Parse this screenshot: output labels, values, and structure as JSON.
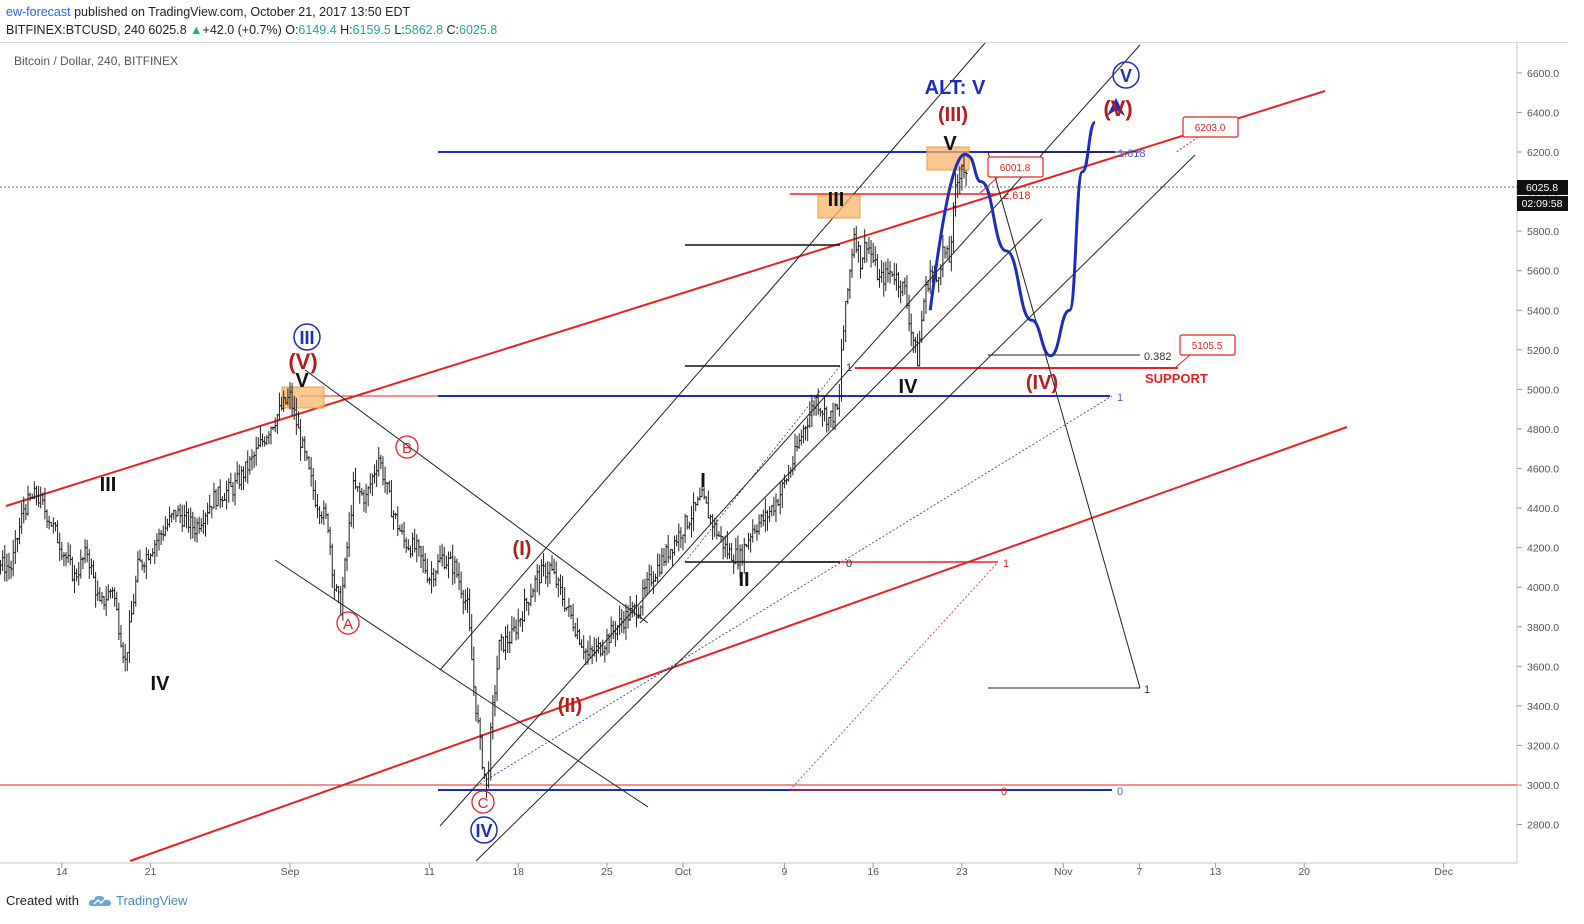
{
  "header": {
    "author": "ew-forecast",
    "published": "published on TradingView.com, October 21, 2017 13:50 EDT",
    "symbol_line": "BITFINEX:BTCUSD, 240",
    "last": "6025.8",
    "change_arrow": "▲",
    "change": "+42.0 (+0.7%)",
    "o_label": "O:",
    "o": "6149.4",
    "h_label": "H:",
    "h": "6159.5",
    "l_label": "L:",
    "l": "5862.8",
    "c_label": "C:",
    "c": "6025.8"
  },
  "footer": {
    "created_with": "Created with",
    "brand": "TradingView"
  },
  "colors": {
    "red": "#e8231f",
    "blue": "#1c2dbd",
    "dark_red": "#b71c1c",
    "bar": "#222222",
    "orange_box": "#f7b46a"
  },
  "chart_data": {
    "type": "ohlc_bar",
    "title": "Bitcoin / Dollar, 240, BITFINEX",
    "ylim": [
      2630,
      6830
    ],
    "y_ticks": [
      "2800.0",
      "3000.0",
      "3200.0",
      "3400.0",
      "3600.0",
      "3800.0",
      "4000.0",
      "4200.0",
      "4400.0",
      "4600.0",
      "4800.0",
      "5000.0",
      "5200.0",
      "5400.0",
      "5600.0",
      "5800.0",
      "6000.0",
      "6200.0",
      "6400.0",
      "6600.0"
    ],
    "y_tick_values": [
      2800,
      3000,
      3200,
      3400,
      3600,
      3800,
      4000,
      4200,
      4400,
      4600,
      4800,
      5000,
      5200,
      5400,
      5600,
      5800,
      6000,
      6200,
      6400,
      6600
    ],
    "x_ticks": [
      "14",
      "21",
      "Sep",
      "11",
      "18",
      "25",
      "Oct",
      "9",
      "16",
      "23",
      "Nov",
      "7",
      "13",
      "20",
      "Dec"
    ],
    "x_tick_days": [
      13.5,
      20.5,
      31.5,
      42.5,
      49.5,
      56.5,
      62.5,
      70.5,
      77.5,
      84.5,
      92.5,
      98.5,
      104.5,
      111.5,
      122.5
    ],
    "x_domain_note": "days from Aug 1 2017",
    "last_price_label": "6025.8",
    "last_price": 6025.8,
    "countdown_label": "02:09:58",
    "price_path": [
      [
        0,
        3300
      ],
      [
        1.5,
        3420
      ],
      [
        3,
        3700
      ],
      [
        4.5,
        4100
      ],
      [
        6,
        4280
      ],
      [
        7.5,
        4350
      ],
      [
        8.5,
        4120
      ],
      [
        9.5,
        4100
      ],
      [
        10.5,
        4400
      ],
      [
        11.5,
        4470
      ],
      [
        12.5,
        4350
      ],
      [
        13.5,
        4200
      ],
      [
        14.5,
        4050
      ],
      [
        15.5,
        4180
      ],
      [
        16.5,
        3900
      ],
      [
        17.5,
        4000
      ],
      [
        18.5,
        3620
      ],
      [
        19.5,
        4100
      ],
      [
        21,
        4240
      ],
      [
        22.5,
        4380
      ],
      [
        24,
        4300
      ],
      [
        25.5,
        4450
      ],
      [
        27,
        4500
      ],
      [
        28.5,
        4640
      ],
      [
        30,
        4820
      ],
      [
        31,
        4920
      ],
      [
        31.5,
        4960
      ],
      [
        32.5,
        4700
      ],
      [
        33.5,
        4450
      ],
      [
        34.5,
        4320
      ],
      [
        35,
        4000
      ],
      [
        35.5,
        3900
      ],
      [
        36.5,
        4500
      ],
      [
        37.5,
        4450
      ],
      [
        38.5,
        4660
      ],
      [
        39.5,
        4400
      ],
      [
        40.5,
        4230
      ],
      [
        41.5,
        4190
      ],
      [
        42.5,
        4050
      ],
      [
        43.5,
        4150
      ],
      [
        44.5,
        4100
      ],
      [
        45.5,
        3900
      ],
      [
        46,
        3500
      ],
      [
        46.5,
        3200
      ],
      [
        47,
        2980
      ],
      [
        47.5,
        3380
      ],
      [
        48,
        3700
      ],
      [
        49,
        3750
      ],
      [
        50,
        3900
      ],
      [
        51,
        4050
      ],
      [
        52,
        4100
      ],
      [
        53,
        3950
      ],
      [
        54,
        3800
      ],
      [
        55,
        3650
      ],
      [
        56,
        3700
      ],
      [
        57,
        3780
      ],
      [
        58,
        3850
      ],
      [
        59,
        3900
      ],
      [
        60,
        4050
      ],
      [
        61,
        4150
      ],
      [
        62,
        4250
      ],
      [
        63,
        4350
      ],
      [
        64,
        4450
      ],
      [
        65,
        4300
      ],
      [
        66,
        4180
      ],
      [
        67,
        4150
      ],
      [
        68,
        4300
      ],
      [
        69,
        4350
      ],
      [
        70,
        4450
      ],
      [
        71,
        4600
      ],
      [
        72,
        4800
      ],
      [
        73,
        4950
      ],
      [
        74,
        4850
      ],
      [
        74.8,
        4900
      ],
      [
        75,
        5200
      ],
      [
        75.5,
        5500
      ],
      [
        76,
        5800
      ],
      [
        76.5,
        5650
      ],
      [
        77,
        5750
      ],
      [
        78,
        5550
      ],
      [
        79,
        5600
      ],
      [
        80,
        5500
      ],
      [
        80.5,
        5300
      ],
      [
        81,
        5150
      ],
      [
        81.5,
        5450
      ],
      [
        82,
        5600
      ],
      [
        82.5,
        5550
      ],
      [
        83,
        5700
      ],
      [
        83.5,
        5650
      ],
      [
        84,
        6000
      ],
      [
        84.5,
        6150
      ],
      [
        85,
        6025
      ]
    ],
    "forecast_path_points": [
      [
        85,
        6180
      ],
      [
        86,
        6050
      ],
      [
        88,
        5700
      ],
      [
        90,
        5350
      ],
      [
        91.5,
        5170
      ],
      [
        93,
        5400
      ],
      [
        94,
        6100
      ],
      [
        95,
        6350
      ]
    ],
    "wave_labels": [
      {
        "text": "ALT: V",
        "kind": "blue_bold"
      },
      {
        "text": "V",
        "kind": "blue_circle"
      },
      {
        "text": "(V)",
        "kind": "dark_red"
      },
      {
        "text": "(III)",
        "kind": "dark_red"
      },
      {
        "text": "V",
        "kind": "black"
      },
      {
        "text": "III",
        "kind": "black"
      },
      {
        "text": "IV",
        "kind": "black"
      },
      {
        "text": "(IV)",
        "kind": "dark_red"
      },
      {
        "text": "I",
        "kind": "black"
      },
      {
        "text": "II",
        "kind": "black"
      },
      {
        "text": "(I)",
        "kind": "dark_red"
      },
      {
        "text": "(II)",
        "kind": "dark_red"
      },
      {
        "text": "III",
        "kind": "blue_circle"
      },
      {
        "text": "(V)",
        "kind": "dark_red"
      },
      {
        "text": "V",
        "kind": "black"
      },
      {
        "text": "III",
        "kind": "black"
      },
      {
        "text": "IV",
        "kind": "black"
      },
      {
        "text": "B",
        "kind": "red_circle"
      },
      {
        "text": "A",
        "kind": "red_circle"
      },
      {
        "text": "C",
        "kind": "red_circle"
      },
      {
        "text": "IV",
        "kind": "blue_circle"
      }
    ],
    "fib_labels": [
      "1.618",
      "2.618",
      "0.382",
      "1",
      "0",
      "1",
      "0",
      "1",
      "1",
      "0"
    ],
    "price_boxes": [
      "6203.0",
      "6001.8",
      "5105.5"
    ],
    "support_label": "SUPPORT"
  }
}
